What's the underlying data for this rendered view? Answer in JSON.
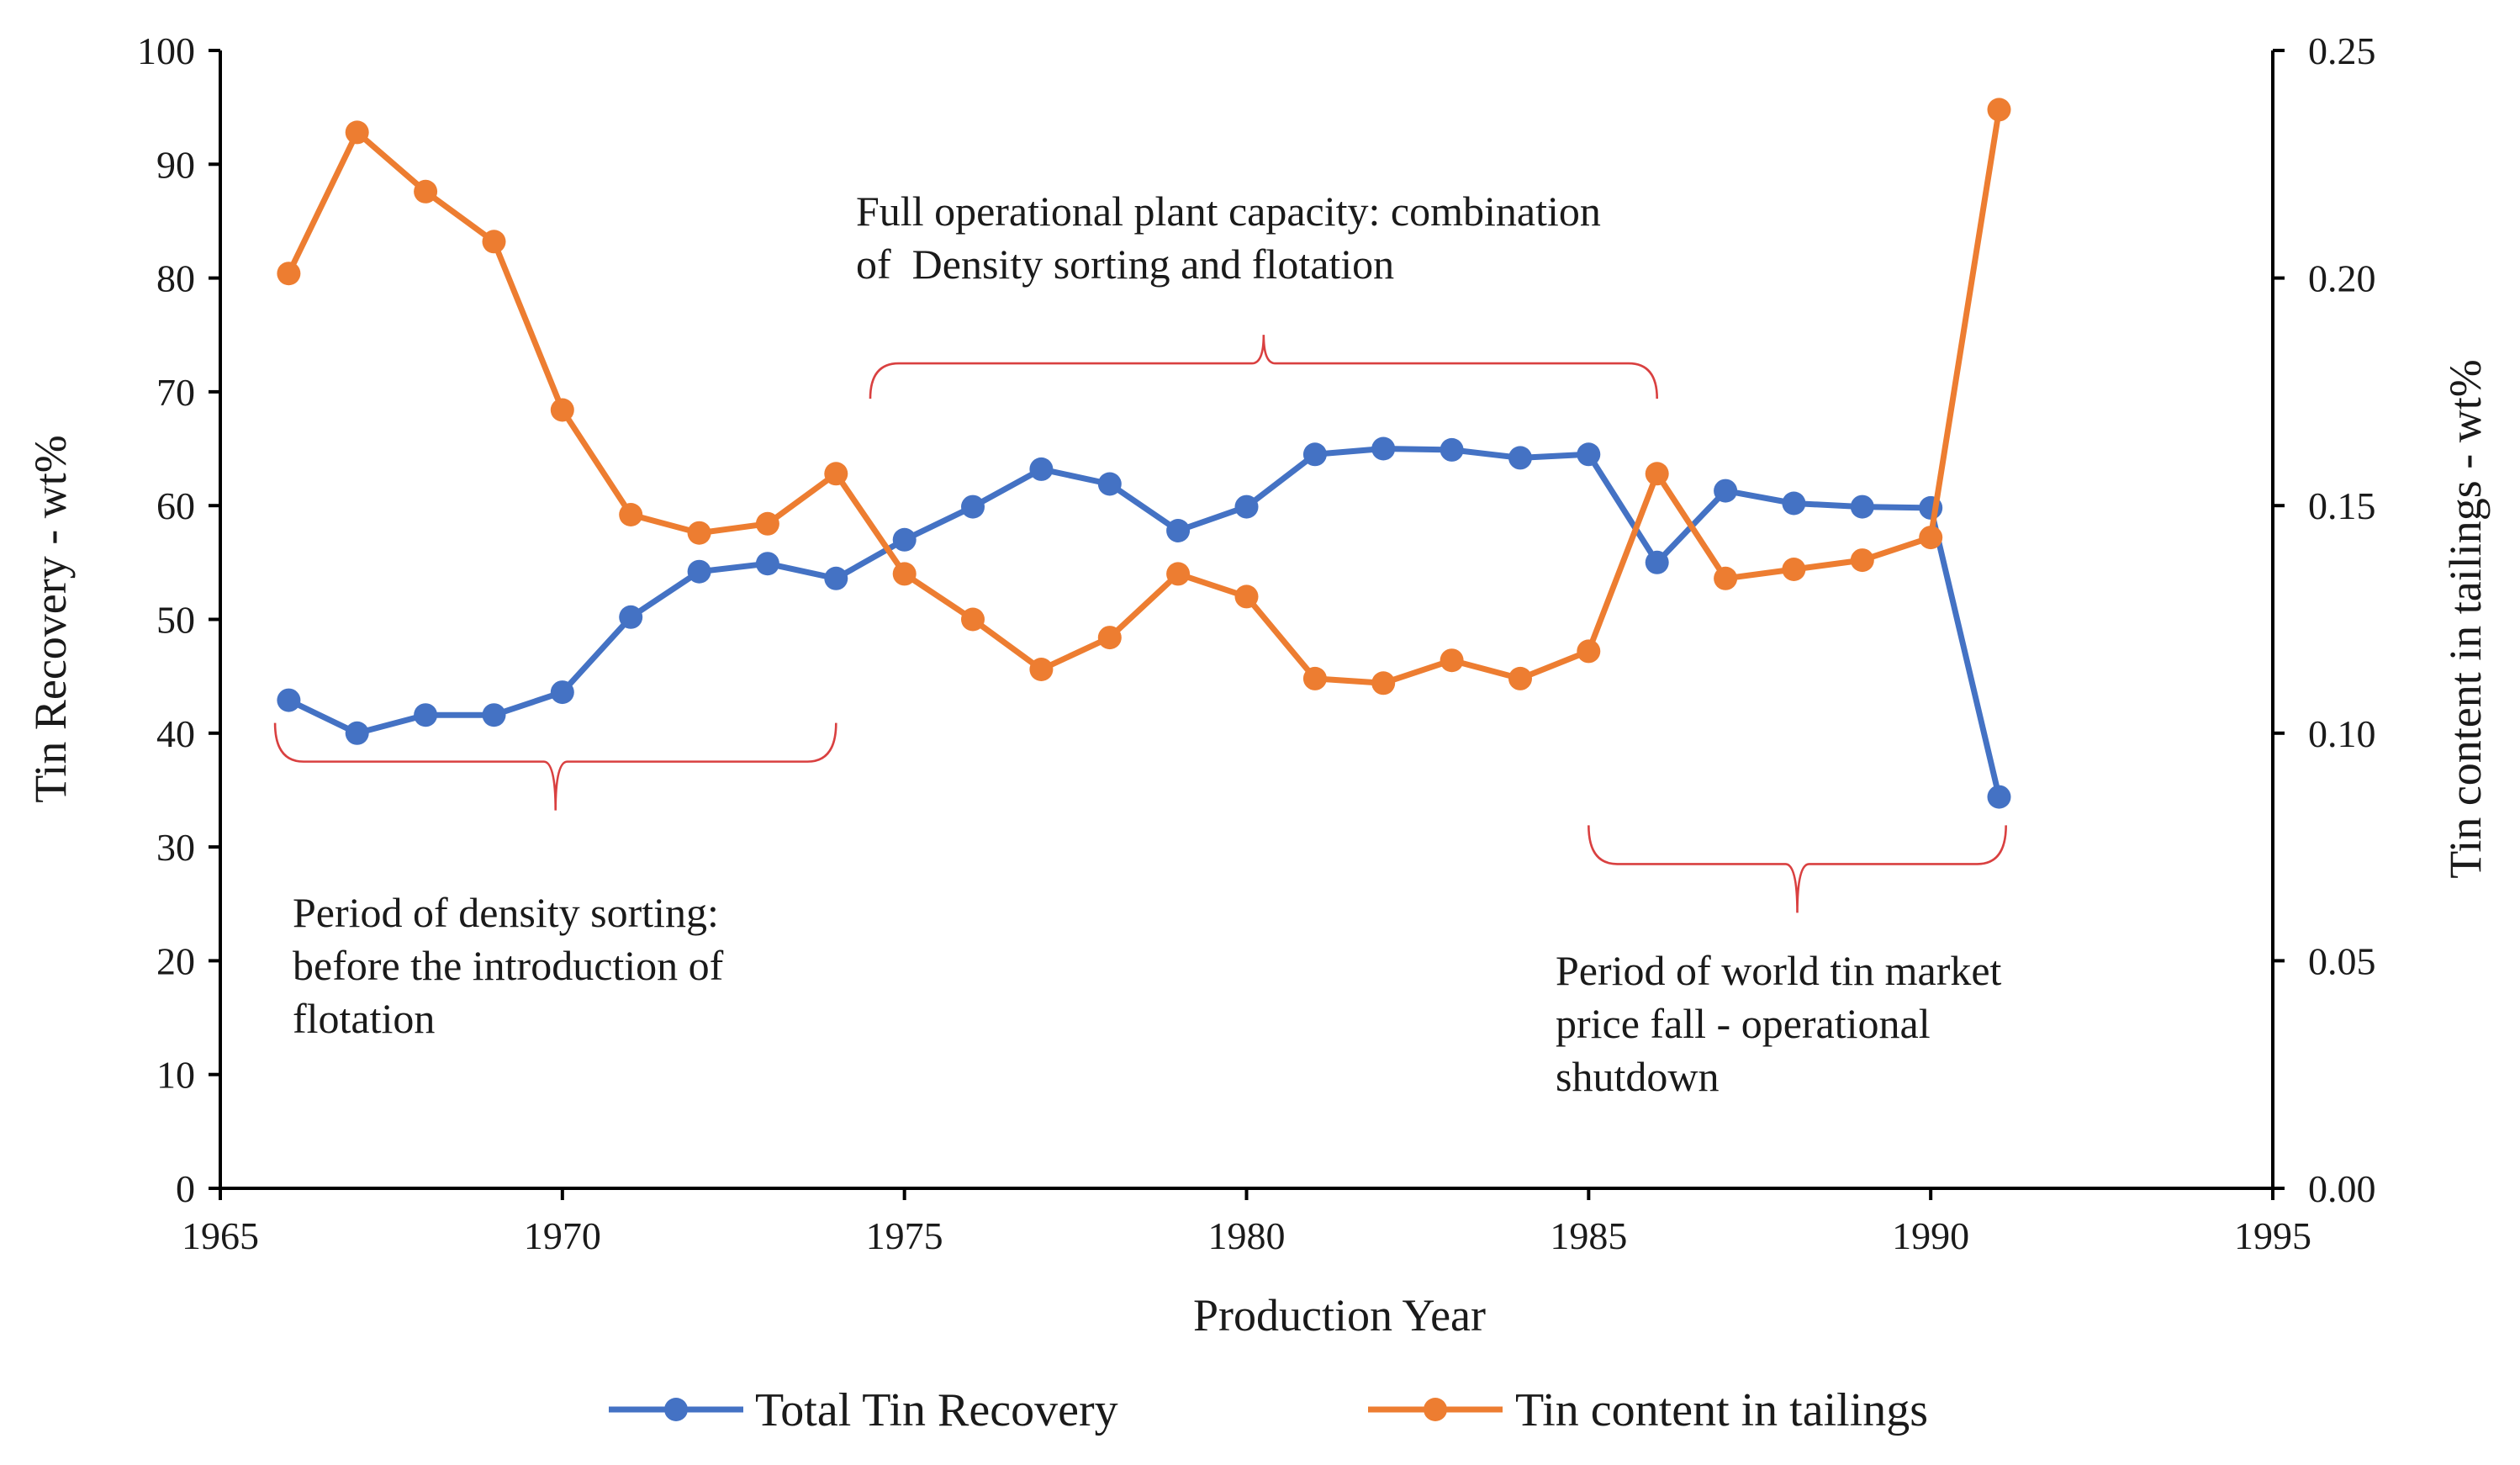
{
  "chart_data": {
    "type": "line",
    "title": "",
    "xlabel": "Production Year",
    "ylabel": "Tin Recovery - wt%",
    "y2label": "Tin content in tailings - wt%",
    "xlim": [
      1965,
      1995
    ],
    "ylim": [
      0,
      100
    ],
    "y2lim": [
      0,
      0.25
    ],
    "x_ticks": [
      "1965",
      "1970",
      "1975",
      "1980",
      "1985",
      "1990",
      "1995"
    ],
    "y_ticks": [
      "0",
      "10",
      "20",
      "30",
      "40",
      "50",
      "60",
      "70",
      "80",
      "90",
      "100"
    ],
    "y2_ticks": [
      "0.00",
      "0.05",
      "0.10",
      "0.15",
      "0.20",
      "0.25"
    ],
    "grid": false,
    "legend_position": "bottom",
    "series": [
      {
        "name": "Total Tin Recovery",
        "axis": "left",
        "color": "#4472c4",
        "x": [
          1966,
          1967,
          1968,
          1969,
          1970,
          1971,
          1972,
          1973,
          1974,
          1975,
          1976,
          1977,
          1978,
          1979,
          1980,
          1981,
          1982,
          1983,
          1984,
          1985,
          1986,
          1987,
          1988,
          1989,
          1990,
          1991
        ],
        "values": [
          42.9,
          40.0,
          41.6,
          41.6,
          43.6,
          50.2,
          54.2,
          54.9,
          53.6,
          57.0,
          59.9,
          63.2,
          61.9,
          57.8,
          59.9,
          64.5,
          65.0,
          64.9,
          64.2,
          64.5,
          55.0,
          61.3,
          60.2,
          59.9,
          59.8,
          34.4
        ]
      },
      {
        "name": "Tin content in tailings",
        "axis": "right",
        "color": "#ed7d31",
        "x": [
          1966,
          1967,
          1968,
          1969,
          1970,
          1971,
          1972,
          1973,
          1974,
          1975,
          1976,
          1977,
          1978,
          1979,
          1980,
          1981,
          1982,
          1983,
          1984,
          1985,
          1986,
          1987,
          1988,
          1989,
          1990,
          1991
        ],
        "values": [
          0.201,
          0.232,
          0.219,
          0.208,
          0.171,
          0.148,
          0.144,
          0.146,
          0.157,
          0.135,
          0.125,
          0.114,
          0.121,
          0.135,
          0.13,
          0.112,
          0.111,
          0.116,
          0.112,
          0.118,
          0.157,
          0.134,
          0.136,
          0.138,
          0.143,
          0.237
        ]
      }
    ],
    "annotations": [
      {
        "name": "annotation-density-sorting",
        "lines": [
          "Period of density sorting:",
          "before the introduction of",
          "flotation"
        ],
        "bracket_span": [
          1965.8,
          1974.0
        ],
        "bracket_y": 37.5
      },
      {
        "name": "annotation-full-capacity",
        "lines": [
          "Full operational plant capacity: combination",
          "of  Density sorting and flotation"
        ],
        "bracket_span": [
          1974.5,
          1986.0
        ],
        "bracket_y": 72.5
      },
      {
        "name": "annotation-price-fall",
        "lines": [
          "Period of world tin market",
          "price fall - operational",
          "shutdown"
        ],
        "bracket_span": [
          1985.0,
          1991.1
        ],
        "bracket_y": 28.5
      }
    ]
  }
}
